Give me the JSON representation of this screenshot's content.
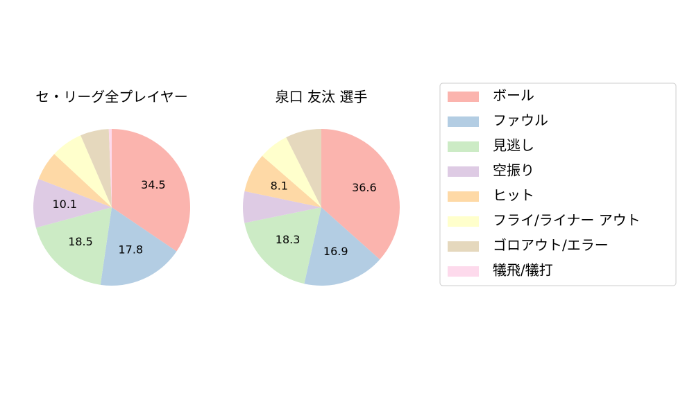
{
  "chart_data": [
    {
      "type": "pie",
      "title": "セ・リーグ全プレイヤー",
      "categories": [
        "ボール",
        "ファウル",
        "見逃し",
        "空振り",
        "ヒット",
        "フライ/ライナー アウト",
        "ゴロアウト/エラー",
        "犠飛/犠打"
      ],
      "values": [
        34.5,
        17.8,
        18.5,
        10.1,
        6.0,
        6.6,
        5.9,
        0.6
      ],
      "value_labels": [
        "34.5",
        "17.8",
        "18.5",
        "10.1",
        null,
        null,
        null,
        null
      ],
      "colors": [
        "#fbb4ae",
        "#b3cde3",
        "#ccebc5",
        "#decbe4",
        "#fed9a6",
        "#ffffcc",
        "#e5d8bd",
        "#fddaec"
      ]
    },
    {
      "type": "pie",
      "title": "泉口 友汰  選手",
      "categories": [
        "ボール",
        "ファウル",
        "見逃し",
        "空振り",
        "ヒット",
        "フライ/ライナー アウト",
        "ゴロアウト/エラー",
        "犠飛/犠打"
      ],
      "values": [
        36.6,
        16.9,
        18.3,
        6.5,
        8.1,
        6.2,
        7.4,
        0
      ],
      "value_labels": [
        "36.6",
        "16.9",
        "18.3",
        null,
        "8.1",
        null,
        null,
        null
      ],
      "colors": [
        "#fbb4ae",
        "#b3cde3",
        "#ccebc5",
        "#decbe4",
        "#fed9a6",
        "#ffffcc",
        "#e5d8bd",
        "#fddaec"
      ]
    }
  ]
}
